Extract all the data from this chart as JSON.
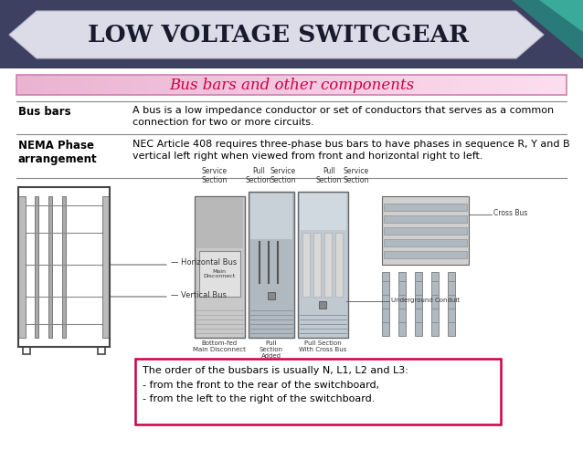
{
  "title": "LOW VOLTAGE SWITCGEAR",
  "subtitle": "Bus bars and other components",
  "row1_label": "Bus bars",
  "row1_text": "A bus is a low impedance conductor or set of conductors that serves as a common\nconnection for two or more circuits.",
  "row2_label": "NEMA Phase\narrangement",
  "row2_text": "NEC Article 408 requires three-phase bus bars to have phases in sequence R, Y and B\nvertical left right when viewed from front and horizontal right to left.",
  "bottom_text": "The order of the busbars is usually N, L1, L2 and L3:\n- from the front to the rear of the switchboard,\n- from the left to the right of the switchboard.",
  "bg_color": "#ffffff",
  "header_bg": "#3d4060",
  "teal1": "#2a7a7a",
  "teal2": "#3aaa9a",
  "ribbon_color": "#dcdce8",
  "ribbon_edge": "#b8b8c8",
  "title_color": "#1a1a2e",
  "subtitle_color": "#cc0044",
  "sub_box_border": "#d080b0",
  "label_color": "#000000",
  "text_color": "#000000",
  "rule_color": "#888888",
  "bottom_box_border": "#cc0044",
  "bottom_box_bg": "#ffffff",
  "diagram_gray1": "#c8c8c8",
  "diagram_gray2": "#a8b0b8",
  "diagram_gray3": "#d8d8d8",
  "diagram_edge": "#666666"
}
